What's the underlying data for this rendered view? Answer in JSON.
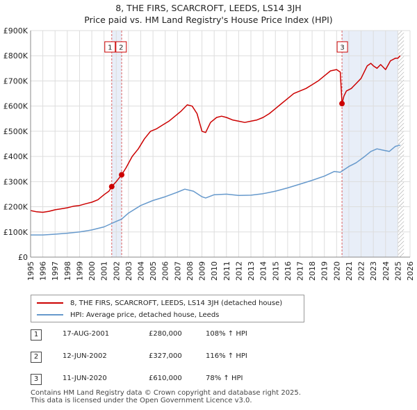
{
  "title_line1": "8, THE FIRS, SCARCROFT, LEEDS, LS14 3JH",
  "title_line2": "Price paid vs. HM Land Registry's House Price Index (HPI)",
  "legend": {
    "property_label": "8, THE FIRS, SCARCROFT, LEEDS, LS14 3JH (detached house)",
    "hpi_label": "HPI: Average price, detached house, Leeds"
  },
  "colors": {
    "property": "#cc0000",
    "hpi": "#6699cc",
    "shade": "#e8eef8",
    "grid": "#dddddd"
  },
  "transactions": [
    {
      "num": "1",
      "date": "17-AUG-2001",
      "price": "£280,000",
      "hpi": "108% ↑ HPI"
    },
    {
      "num": "2",
      "date": "12-JUN-2002",
      "price": "£327,000",
      "hpi": "116% ↑ HPI"
    },
    {
      "num": "3",
      "date": "11-JUN-2020",
      "price": "£610,000",
      "hpi": "78% ↑ HPI"
    }
  ],
  "footer_line1": "Contains HM Land Registry data © Crown copyright and database right 2025.",
  "footer_line2": "This data is licensed under the Open Government Licence v3.0.",
  "chart_data": {
    "type": "line",
    "title": "8, THE FIRS, SCARCROFT, LEEDS, LS14 3JH",
    "subtitle": "Price paid vs. HM Land Registry's House Price Index (HPI)",
    "xlim": [
      1995,
      2026
    ],
    "ylim": [
      0,
      900000
    ],
    "x_ticks": [
      1995,
      1996,
      1997,
      1998,
      1999,
      2000,
      2001,
      2002,
      2003,
      2004,
      2005,
      2006,
      2007,
      2008,
      2009,
      2010,
      2011,
      2012,
      2013,
      2014,
      2015,
      2016,
      2017,
      2018,
      2019,
      2020,
      2021,
      2022,
      2023,
      2024,
      2025,
      2026
    ],
    "y_ticks": [
      0,
      100000,
      200000,
      300000,
      400000,
      500000,
      600000,
      700000,
      800000,
      900000
    ],
    "y_tick_labels": [
      "£0",
      "£100K",
      "£200K",
      "£300K",
      "£400K",
      "£500K",
      "£600K",
      "£700K",
      "£800K",
      "£900K"
    ],
    "series": [
      {
        "name": "8, THE FIRS, SCARCROFT, LEEDS, LS14 3JH (detached house)",
        "x": [
          1995,
          1995.5,
          1996,
          1996.5,
          1997,
          1997.5,
          1998,
          1998.5,
          1999,
          1999.5,
          2000,
          2000.5,
          2001,
          2001.4,
          2001.63,
          2002,
          2002.44,
          2002.8,
          2003.3,
          2003.8,
          2004.3,
          2004.8,
          2005.3,
          2005.8,
          2006.3,
          2006.8,
          2007.3,
          2007.8,
          2008.2,
          2008.6,
          2009.0,
          2009.3,
          2009.7,
          2010.2,
          2010.6,
          2011.0,
          2011.5,
          2012.0,
          2012.5,
          2013.0,
          2013.5,
          2014.0,
          2014.5,
          2015.0,
          2015.5,
          2016.0,
          2016.5,
          2017.0,
          2017.5,
          2018.0,
          2018.5,
          2019.0,
          2019.5,
          2020.0,
          2020.3,
          2020.44,
          2020.6,
          2020.8,
          2021.2,
          2021.6,
          2022.0,
          2022.5,
          2022.8,
          2023.0,
          2023.3,
          2023.6,
          2024.0,
          2024.4,
          2024.8,
          2025.0,
          2025.2
        ],
        "values": [
          185000,
          180000,
          178000,
          182000,
          188000,
          192000,
          196000,
          202000,
          205000,
          212000,
          218000,
          228000,
          248000,
          262000,
          280000,
          300000,
          327000,
          355000,
          400000,
          430000,
          470000,
          500000,
          510000,
          525000,
          540000,
          560000,
          580000,
          605000,
          600000,
          570000,
          500000,
          495000,
          535000,
          555000,
          560000,
          555000,
          545000,
          540000,
          535000,
          540000,
          545000,
          555000,
          570000,
          590000,
          610000,
          630000,
          650000,
          660000,
          670000,
          685000,
          700000,
          720000,
          740000,
          745000,
          735000,
          610000,
          640000,
          660000,
          670000,
          690000,
          710000,
          760000,
          770000,
          760000,
          750000,
          765000,
          745000,
          780000,
          790000,
          790000,
          800000
        ]
      },
      {
        "name": "HPI: Average price, detached house, Leeds",
        "x": [
          1995,
          1996,
          1997,
          1998,
          1999,
          2000,
          2001,
          2001.63,
          2002,
          2002.44,
          2003,
          2004,
          2005,
          2006,
          2007,
          2007.6,
          2008.3,
          2009.0,
          2009.3,
          2010,
          2011,
          2012,
          2013,
          2014,
          2015,
          2016,
          2017,
          2018,
          2019,
          2019.8,
          2020.3,
          2021,
          2021.6,
          2022.3,
          2022.8,
          2023.3,
          2023.8,
          2024.3,
          2024.8,
          2025.2
        ],
        "values": [
          88000,
          88000,
          91000,
          95000,
          100000,
          108000,
          120000,
          134000,
          142000,
          151000,
          175000,
          205000,
          225000,
          240000,
          258000,
          270000,
          262000,
          240000,
          235000,
          248000,
          250000,
          245000,
          246000,
          252000,
          262000,
          275000,
          290000,
          305000,
          322000,
          340000,
          337000,
          360000,
          375000,
          400000,
          420000,
          430000,
          425000,
          420000,
          440000,
          445000
        ]
      }
    ],
    "markers": [
      {
        "label": "1",
        "x": 2001.63,
        "y": 280000
      },
      {
        "label": "2",
        "x": 2002.44,
        "y": 327000
      },
      {
        "label": "3",
        "x": 2020.44,
        "y": 610000
      }
    ],
    "shaded_regions": [
      [
        2001.63,
        2002.44
      ],
      [
        2020.44,
        2025.0
      ]
    ],
    "hatched_region": [
      2025.0,
      2025.5
    ],
    "legend_position": "bottom"
  }
}
